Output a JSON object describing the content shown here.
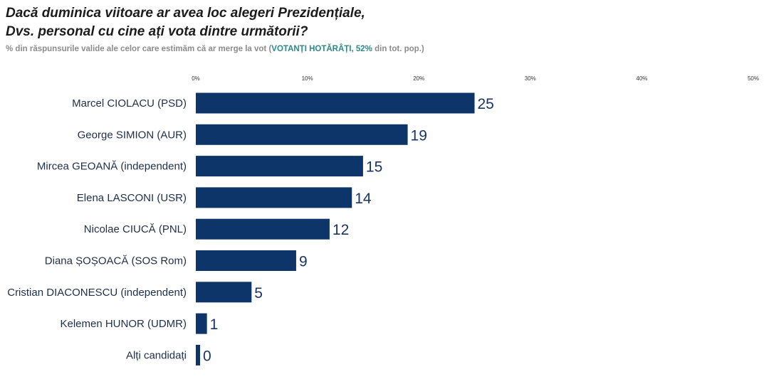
{
  "header": {
    "title_line1": "Dacă duminica viitoare ar avea loc alegeri Prezidențiale,",
    "title_line2": "Dvs. personal cu cine ați vota dintre următorii?",
    "subtitle_pre": "% din răspunsurile valide ale celor care estimăm că ar merge la vot (",
    "subtitle_highlight": "VOTANȚI HOTĂRÂȚI, 52%",
    "subtitle_post": " din tot. pop.)"
  },
  "colors": {
    "bar": "#0d3569",
    "value_label": "#1a3563",
    "highlight": "#2a8a8a"
  },
  "chart_data": {
    "type": "bar",
    "orientation": "horizontal",
    "categories": [
      "Marcel CIOLACU (PSD)",
      "George SIMION (AUR)",
      "Mircea GEOANĂ (independent)",
      "Elena LASCONI (USR)",
      "Nicolae CIUCĂ (PNL)",
      "Diana ȘOȘOACĂ (SOS Rom)",
      "Cristian DIACONESCU (independent)",
      "Kelemen HUNOR (UDMR)",
      "Alți candidați"
    ],
    "values": [
      25,
      19,
      15,
      14,
      12,
      9,
      5,
      1,
      0
    ],
    "xlim": [
      0,
      50
    ],
    "x_ticks": [
      0,
      10,
      20,
      30,
      40,
      50
    ],
    "x_tick_labels": [
      "0%",
      "10%",
      "20%",
      "30%",
      "40%",
      "50%"
    ],
    "grid": false,
    "legend": false
  }
}
